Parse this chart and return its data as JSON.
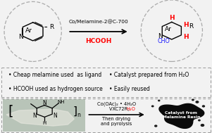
{
  "bg_color": "#f2f2f2",
  "top_bg": "#ffffff",
  "middle_bg": "#ffffff",
  "bottom_bg": "#c8c8c8",
  "catalyst_text": "Co/Melamine-2@C-700",
  "reagent_text": "HCOOH",
  "bullet_points": [
    "Cheap melamine used  as ligand",
    "Catalyst prepared from H₂O",
    "HCOOH used as hydrogen source",
    "Easily reused"
  ],
  "bottom_reagent1": "Co(OAc)₂ • 4H₂O",
  "bottom_step": "Then drying\nand pyrolysis",
  "bottom_label_1": "Catalyst from",
  "bottom_label_2": "Melamine Resin",
  "red_color": "#ff0000",
  "blue_color": "#1a1aff",
  "black_color": "#000000",
  "dashed_color": "#aaaaaa",
  "dash_border_color": "#999999"
}
